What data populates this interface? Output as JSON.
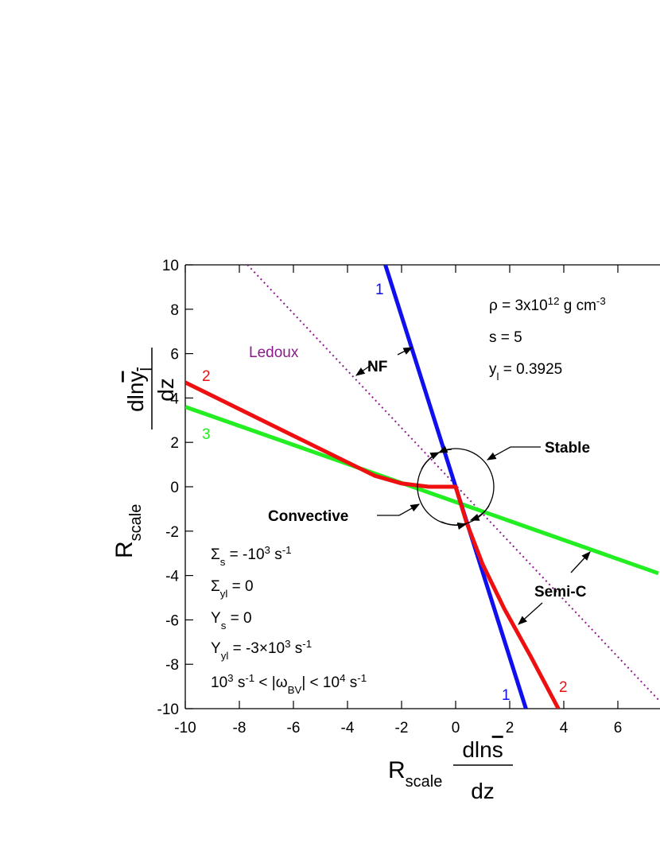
{
  "chart_data": {
    "type": "line",
    "x_label": {
      "symbol": "R",
      "subscript": "scale",
      "numerator": [
        "dln",
        "s"
      ],
      "denominator": "dz"
    },
    "y_label": {
      "symbol": "R",
      "subscript": "scale",
      "numerator": [
        "dln",
        "y",
        "l"
      ],
      "denominator": "dz"
    },
    "xlim": [
      -10,
      7.5
    ],
    "ylim": [
      -10,
      10
    ],
    "xticks": [
      -10,
      -8,
      -6,
      -4,
      -2,
      0,
      2,
      4,
      6
    ],
    "yticks": [
      -10,
      -8,
      -6,
      -4,
      -2,
      0,
      2,
      4,
      6,
      8,
      10
    ],
    "series": [
      {
        "name": "Ledoux",
        "color": "#8b1a8b",
        "dashed": true,
        "x": [
          -7.7,
          7.5
        ],
        "values": [
          10,
          -9.6
        ]
      },
      {
        "name": "3",
        "color": "#22ee22",
        "x": [
          -10,
          7.5
        ],
        "values": [
          3.6,
          -3.9
        ]
      },
      {
        "name": "1",
        "color": "#1010ee",
        "x": [
          -2.6,
          2.6
        ],
        "values": [
          10,
          -10
        ]
      },
      {
        "name": "2",
        "color": "#ee1010",
        "x": [
          -10,
          -8,
          -6,
          -4,
          -3,
          -2,
          -1,
          0,
          0.4,
          1,
          1.8,
          2.8,
          3.8
        ],
        "values": [
          4.7,
          3.5,
          2.3,
          1.1,
          0.5,
          0.15,
          0,
          0,
          -1.6,
          -3.5,
          -5.5,
          -7.7,
          -10
        ]
      }
    ],
    "annotations": {
      "nf": "NF",
      "stable": "Stable",
      "convective": "Convective",
      "semi_c": "Semi-C",
      "density": [
        "ρ = 3x10",
        "12",
        " g cm",
        "-3"
      ],
      "entropy": "s = 5",
      "yl": [
        "y",
        "l",
        " = 0.3925"
      ],
      "sigma_s": [
        "Σ",
        "s",
        " = -10",
        "3",
        " s",
        "-1"
      ],
      "sigma_yl": [
        "Σ",
        "yl",
        " = 0"
      ],
      "upsilon_s": [
        "Υ",
        "s",
        " = 0"
      ],
      "upsilon_yl": [
        "Υ",
        "yl",
        " = -3×10",
        "3",
        " s",
        "-1"
      ],
      "omega": [
        "10",
        "3",
        " s",
        "-1",
        " < |ω",
        "BV",
        "| < 10",
        "4",
        " s",
        "-1"
      ]
    }
  }
}
